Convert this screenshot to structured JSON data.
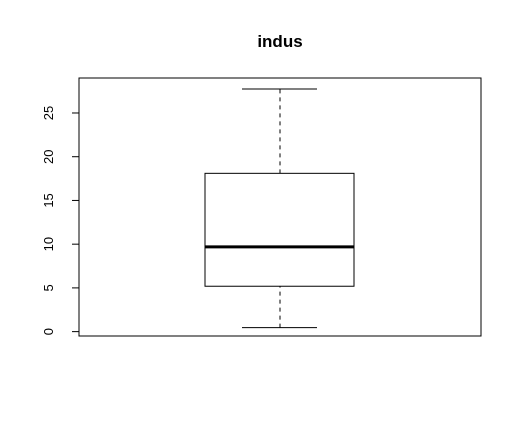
{
  "chart_data": {
    "type": "box",
    "title": "indus",
    "xlabel": "",
    "ylabel": "",
    "ylim": [
      -0.5,
      29.0
    ],
    "yticks": [
      0,
      5,
      10,
      15,
      20,
      25
    ],
    "ytick_labels": [
      "0",
      "5",
      "10",
      "15",
      "20",
      "25"
    ],
    "grid": false,
    "box": {
      "whisker_low": 0.46,
      "q1": 5.19,
      "median": 9.69,
      "q3": 18.1,
      "whisker_high": 27.74
    }
  }
}
